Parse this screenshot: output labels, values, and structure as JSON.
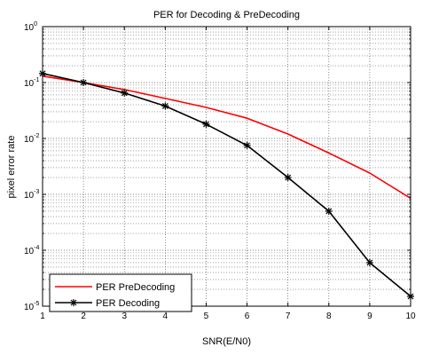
{
  "chart_data": {
    "type": "line",
    "title": "PER for Decoding & PreDecoding",
    "xlabel": "SNR(E/N0)",
    "ylabel": "pixel error rate",
    "xlim": [
      1,
      10
    ],
    "ylim": [
      1e-05,
      1
    ],
    "yscale": "log",
    "grid": "on (major and minor, dotted)",
    "legend": "bottom-left",
    "x": [
      1,
      2,
      3,
      4,
      5,
      6,
      7,
      8,
      9,
      10
    ],
    "x_ticks": [
      "1",
      "2",
      "3",
      "4",
      "5",
      "6",
      "7",
      "8",
      "9",
      "10"
    ],
    "y_ticks": [
      {
        "base": "10",
        "exp": "0"
      },
      {
        "base": "10",
        "exp": "-1"
      },
      {
        "base": "10",
        "exp": "-2"
      },
      {
        "base": "10",
        "exp": "-3"
      },
      {
        "base": "10",
        "exp": "-4"
      },
      {
        "base": "10",
        "exp": "-5"
      }
    ],
    "series": [
      {
        "name": "PER PreDecoding",
        "color": "#ff0000",
        "marker": "none",
        "values": [
          0.13,
          0.1,
          0.075,
          0.052,
          0.036,
          0.023,
          0.012,
          0.0055,
          0.0024,
          0.00085
        ]
      },
      {
        "name": "PER Decoding",
        "color": "#000000",
        "marker": "star",
        "values": [
          0.145,
          0.1,
          0.065,
          0.038,
          0.018,
          0.0075,
          0.002,
          0.0005,
          6e-05,
          1.5e-05
        ]
      }
    ]
  }
}
